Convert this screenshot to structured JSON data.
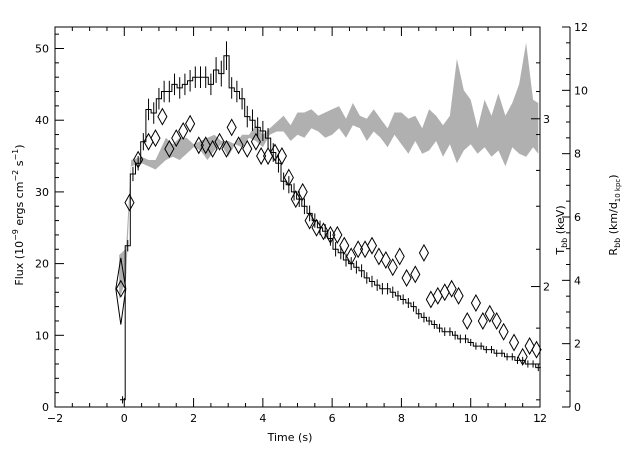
{
  "chart_data": {
    "type": "scatter",
    "xlabel": "Time (s)",
    "xlim": [
      -2,
      12
    ],
    "x_ticks": [
      "−2",
      "0",
      "2",
      "4",
      "6",
      "8",
      "10",
      "12"
    ],
    "left_axis": {
      "label_parts": [
        "Flux (10",
        "−9",
        " ergs cm",
        "−2",
        " s",
        "−1",
        ")"
      ],
      "ylim": [
        0,
        53
      ],
      "ticks": [
        "0",
        "10",
        "20",
        "30",
        "40",
        "50"
      ]
    },
    "right_axis_R": {
      "label_parts": [
        "R",
        "bb",
        " (km/d",
        "10 kpc",
        ")"
      ],
      "ylim": [
        0,
        12
      ],
      "ticks": [
        "0",
        "2",
        "4",
        "6",
        "8",
        "10",
        "12"
      ]
    },
    "right_axis_T": {
      "label_parts": [
        "T",
        "bb",
        " (keV)"
      ],
      "ticks": [
        "2",
        "3"
      ],
      "tick_positions_in_flux_units": [
        16.8,
        40.2
      ]
    },
    "series": [
      {
        "style": "histogram step with error bars",
        "color": "#000000",
        "axis": "left",
        "x": [
          -0.05,
          0.1,
          0.25,
          0.4,
          0.55,
          0.7,
          0.85,
          1.0,
          1.15,
          1.3,
          1.45,
          1.6,
          1.75,
          1.9,
          2.05,
          2.2,
          2.35,
          2.5,
          2.65,
          2.8,
          2.95,
          3.1,
          3.25,
          3.4,
          3.55,
          3.7,
          3.85,
          4.0,
          4.15,
          4.3,
          4.45,
          4.6,
          4.75,
          4.9,
          5.05,
          5.2,
          5.35,
          5.5,
          5.65,
          5.8,
          5.95,
          6.1,
          6.25,
          6.4,
          6.55,
          6.7,
          6.85,
          7.0,
          7.15,
          7.3,
          7.45,
          7.6,
          7.75,
          7.9,
          8.05,
          8.2,
          8.35,
          8.5,
          8.65,
          8.8,
          8.95,
          9.1,
          9.25,
          9.4,
          9.55,
          9.7,
          9.85,
          10.0,
          10.15,
          10.3,
          10.45,
          10.6,
          10.75,
          10.9,
          11.05,
          11.2,
          11.35,
          11.5,
          11.65,
          11.8,
          11.95
        ],
        "y": [
          1,
          22.5,
          32.5,
          34,
          37,
          41.5,
          41,
          43,
          44,
          44,
          45,
          44.5,
          45,
          45.5,
          46,
          46,
          46,
          45,
          47,
          46.5,
          49,
          44.5,
          44,
          43,
          40.5,
          40,
          39,
          38.5,
          37.5,
          35.5,
          34,
          31.5,
          31,
          30,
          29,
          28,
          27,
          26,
          25,
          24.5,
          23.5,
          22,
          21.5,
          20.5,
          20,
          19.5,
          19,
          18,
          17.5,
          17,
          16.5,
          16.5,
          16,
          15.5,
          15,
          14.5,
          14,
          13,
          12.5,
          12,
          11.5,
          11,
          10.5,
          10.5,
          10,
          9.5,
          9.5,
          9,
          8.5,
          8.5,
          8,
          8,
          7.5,
          7.5,
          7,
          7,
          6.5,
          6.5,
          6,
          6,
          5.5
        ],
        "yerr": [
          0.5,
          0.8,
          1.0,
          1.0,
          1.2,
          1.5,
          1.5,
          1.5,
          1.5,
          1.5,
          1.5,
          1.5,
          1.5,
          1.5,
          1.5,
          1.5,
          1.5,
          1.5,
          1.8,
          1.8,
          2.0,
          1.5,
          1.5,
          1.5,
          1.5,
          1.5,
          1.4,
          1.4,
          1.4,
          1.3,
          1.3,
          1.2,
          1.2,
          1.2,
          1.1,
          1.1,
          1.1,
          1.0,
          1.0,
          1.0,
          1.0,
          1.0,
          0.9,
          0.9,
          0.9,
          0.9,
          0.9,
          0.8,
          0.8,
          0.8,
          0.8,
          0.8,
          0.8,
          0.7,
          0.7,
          0.7,
          0.7,
          0.7,
          0.7,
          0.6,
          0.6,
          0.6,
          0.6,
          0.6,
          0.6,
          0.6,
          0.6,
          0.5,
          0.5,
          0.5,
          0.5,
          0.5,
          0.5,
          0.5,
          0.5,
          0.5,
          0.5,
          0.5,
          0.5,
          0.5,
          0.5
        ]
      },
      {
        "style": "open diamonds (T_bb)",
        "color": "#000000",
        "axis": "left",
        "x": [
          -0.1,
          0.15,
          0.4,
          0.7,
          0.9,
          1.1,
          1.3,
          1.5,
          1.7,
          1.9,
          2.15,
          2.35,
          2.55,
          2.75,
          2.95,
          3.1,
          3.3,
          3.55,
          3.8,
          3.95,
          4.15,
          4.35,
          4.55,
          4.75,
          4.95,
          5.15,
          5.35,
          5.55,
          5.75,
          5.95,
          6.15,
          6.35,
          6.55,
          6.75,
          6.95,
          7.15,
          7.35,
          7.55,
          7.75,
          7.95,
          8.15,
          8.4,
          8.65,
          8.85,
          9.05,
          9.25,
          9.45,
          9.65,
          9.9,
          10.15,
          10.35,
          10.55,
          10.75,
          10.95,
          11.25,
          11.5,
          11.7,
          11.9
        ],
        "y": [
          16.5,
          28.5,
          34.5,
          37,
          37.5,
          40.5,
          36,
          37.5,
          38.5,
          39.5,
          36.5,
          36.5,
          36,
          37,
          36,
          39,
          36.5,
          36,
          37,
          35,
          35,
          35.5,
          35,
          32,
          29,
          30,
          26,
          25,
          24.5,
          24,
          24,
          22.5,
          21,
          22,
          22,
          22.5,
          21,
          20.5,
          19.5,
          21,
          18,
          18.5,
          21.5,
          15,
          15.5,
          16,
          16.5,
          15.5,
          12,
          14.5,
          12,
          13,
          12,
          10.5,
          9,
          7,
          8.5,
          8
        ]
      },
      {
        "style": "grey shaded band (R_bb)",
        "color": "#b0b0b0",
        "axis": "right_R",
        "x": [
          -0.15,
          0.05,
          0.2,
          0.5,
          0.7,
          0.9,
          1.2,
          1.4,
          1.6,
          1.8,
          2.0,
          2.2,
          2.4,
          2.6,
          2.8,
          3.0,
          3.2,
          3.4,
          3.6,
          3.8,
          4.0,
          4.2,
          4.4,
          4.6,
          4.8,
          5.0,
          5.2,
          5.4,
          5.6,
          5.8,
          6.0,
          6.2,
          6.4,
          6.6,
          6.8,
          7.0,
          7.2,
          7.4,
          7.6,
          7.8,
          8.0,
          8.2,
          8.4,
          8.6,
          8.8,
          9.0,
          9.2,
          9.4,
          9.6,
          9.8,
          10.0,
          10.2,
          10.4,
          10.6,
          10.8,
          11.0,
          11.2,
          11.4,
          11.6,
          11.8,
          11.95
        ],
        "lo": [
          3.4,
          4.0,
          7.6,
          7.7,
          7.6,
          7.5,
          7.8,
          7.9,
          7.8,
          8.0,
          8.2,
          8.1,
          7.8,
          8.1,
          8.3,
          7.9,
          8.3,
          8.2,
          8.5,
          8.4,
          8.2,
          8.6,
          8.7,
          8.7,
          8.4,
          8.6,
          8.5,
          8.8,
          8.7,
          8.5,
          8.6,
          8.8,
          8.5,
          8.9,
          8.8,
          8.4,
          8.7,
          8.5,
          8.2,
          8.6,
          8.3,
          8.0,
          8.4,
          8.0,
          8.1,
          8.4,
          7.9,
          8.3,
          7.7,
          8.1,
          8.3,
          8.0,
          8.2,
          7.9,
          8.1,
          7.6,
          8.2,
          8.0,
          7.9,
          8.2,
          8.0
        ],
        "hi": [
          4.8,
          5.0,
          7.8,
          7.9,
          7.8,
          7.8,
          8.5,
          8.3,
          8.5,
          8.5,
          8.3,
          8.4,
          8.5,
          8.6,
          8.4,
          8.4,
          8.3,
          8.6,
          8.6,
          8.9,
          8.6,
          8.8,
          9.0,
          9.2,
          8.9,
          9.3,
          9.3,
          9.4,
          9.2,
          9.3,
          9.4,
          9.5,
          9.1,
          9.6,
          9.2,
          9.1,
          9.4,
          9.1,
          8.8,
          9.3,
          9.3,
          9.1,
          9.2,
          8.8,
          9.4,
          9.2,
          8.9,
          9.2,
          11.0,
          10.0,
          9.7,
          8.8,
          9.7,
          9.2,
          9.9,
          9.2,
          9.6,
          10.2,
          11.5,
          9.7,
          9.6
        ]
      }
    ],
    "grid": false,
    "legend": "none"
  }
}
